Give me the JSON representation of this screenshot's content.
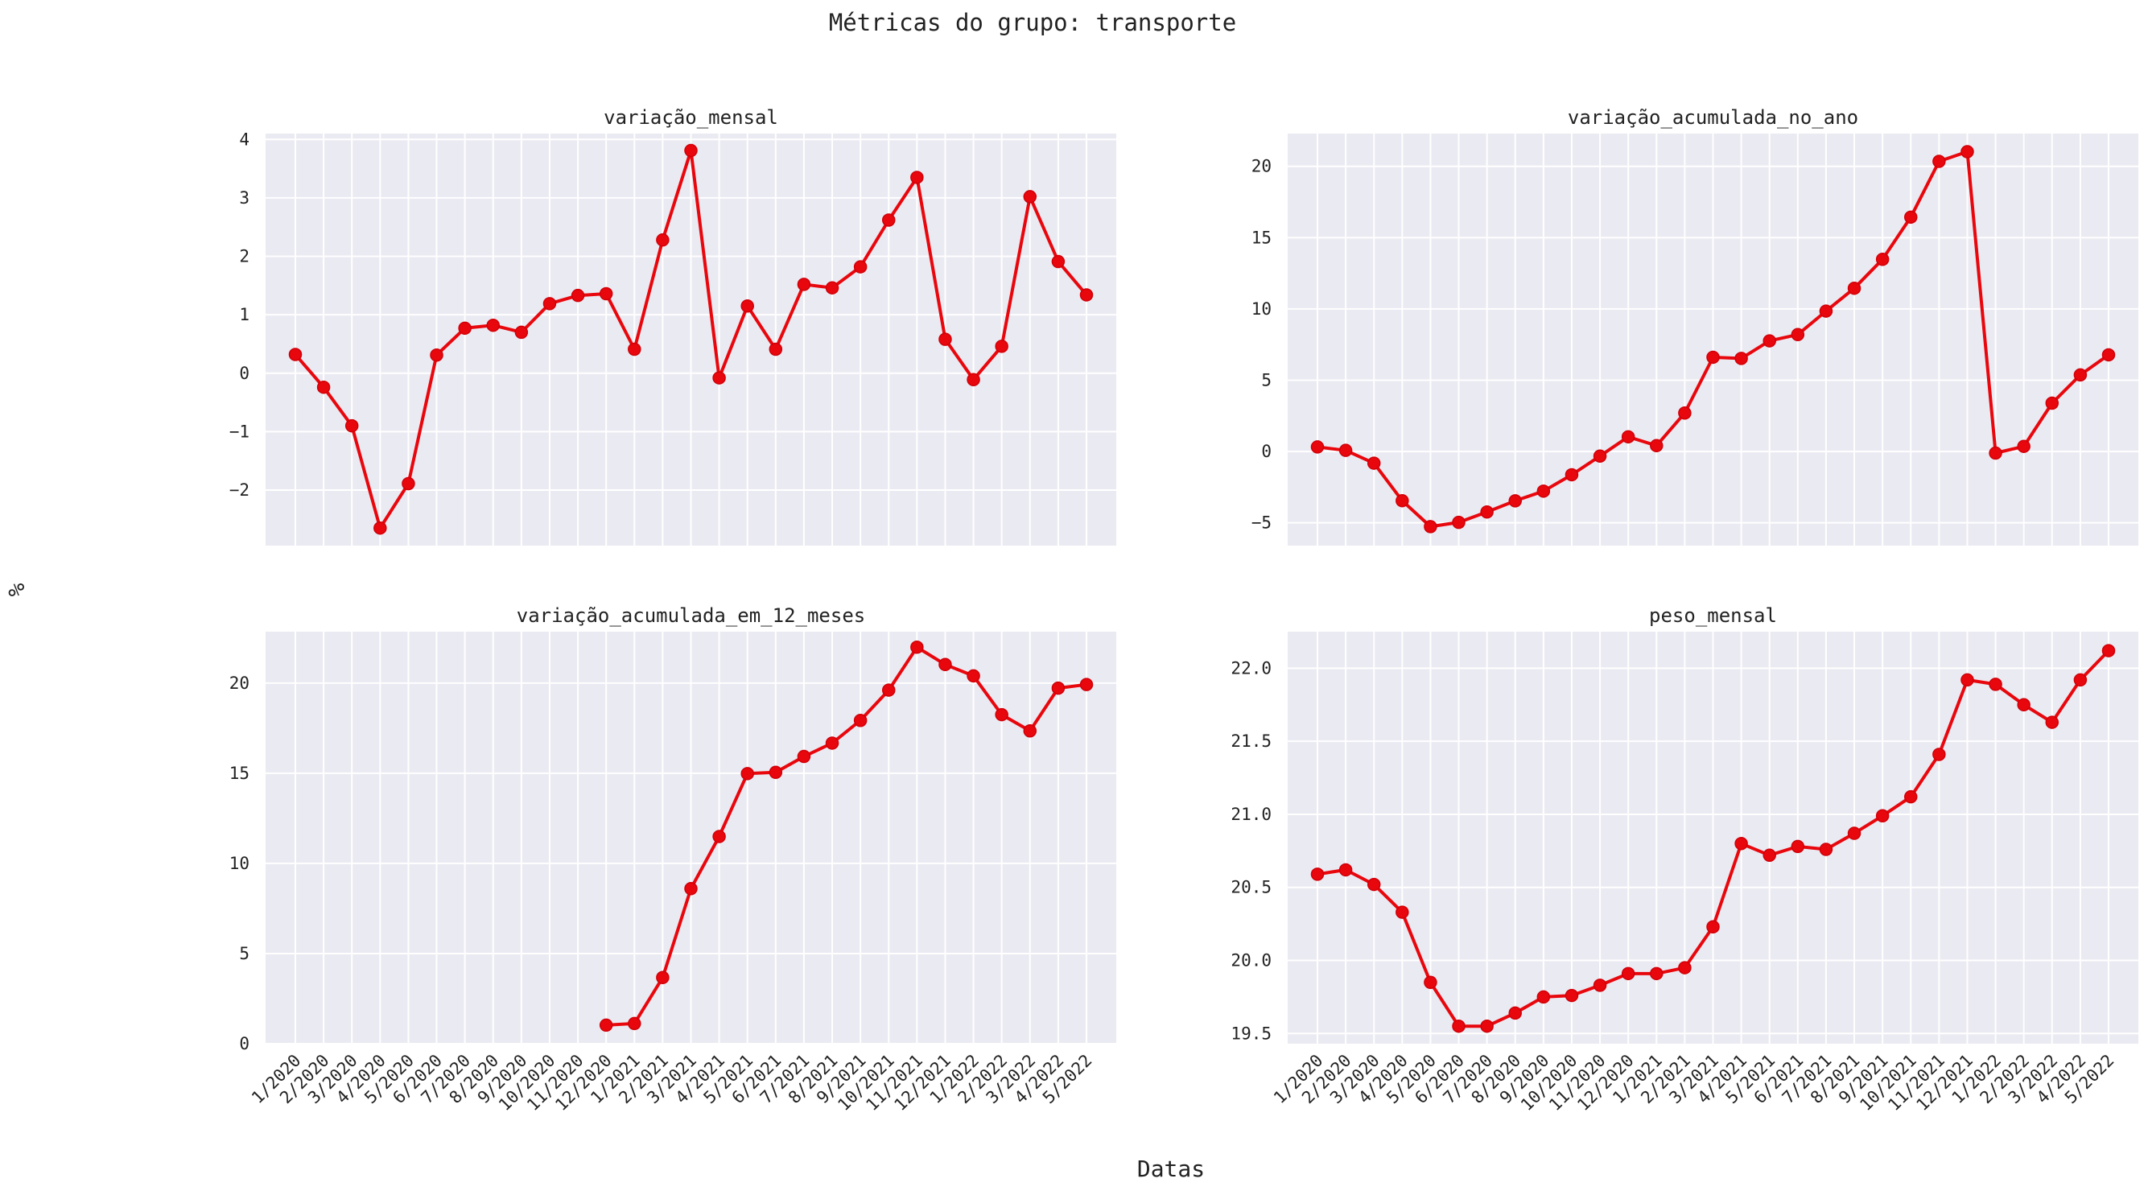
{
  "figure": {
    "title": "Métricas do grupo: transporte",
    "xlabel": "Datas",
    "ylabel": "%"
  },
  "style": {
    "line_color": "#e8070d",
    "background": "#eaeaf2",
    "grid_color": "#ffffff"
  },
  "chart_data": [
    {
      "type": "line",
      "title": "variação_mensal",
      "categories": [
        "1/2020",
        "2/2020",
        "3/2020",
        "4/2020",
        "5/2020",
        "6/2020",
        "7/2020",
        "8/2020",
        "9/2020",
        "10/2020",
        "11/2020",
        "12/2020",
        "1/2021",
        "2/2021",
        "3/2021",
        "4/2021",
        "5/2021",
        "6/2021",
        "7/2021",
        "8/2021",
        "9/2021",
        "10/2021",
        "11/2021",
        "12/2021",
        "1/2022",
        "2/2022",
        "3/2022",
        "4/2022",
        "5/2022"
      ],
      "values": [
        0.32,
        -0.24,
        -0.9,
        -2.65,
        -1.89,
        0.31,
        0.77,
        0.82,
        0.7,
        1.19,
        1.33,
        1.36,
        0.41,
        2.28,
        3.81,
        -0.08,
        1.15,
        0.41,
        1.52,
        1.46,
        1.82,
        2.62,
        3.35,
        0.58,
        -0.11,
        0.46,
        3.02,
        1.91,
        1.34
      ],
      "yticks": [
        -2,
        -1,
        0,
        1,
        2,
        3,
        4
      ],
      "ytick_labels": [
        "−2",
        "−1",
        "0",
        "1",
        "2",
        "3",
        "4"
      ],
      "ylim": [
        -2.95,
        4.1
      ],
      "show_xticklabels": false,
      "grid": true
    },
    {
      "type": "line",
      "title": "variação_acumulada_no_ano",
      "categories": [
        "1/2020",
        "2/2020",
        "3/2020",
        "4/2020",
        "5/2020",
        "6/2020",
        "7/2020",
        "8/2020",
        "9/2020",
        "10/2020",
        "11/2020",
        "12/2020",
        "1/2021",
        "2/2021",
        "3/2021",
        "4/2021",
        "5/2021",
        "6/2021",
        "7/2021",
        "8/2021",
        "9/2021",
        "10/2021",
        "11/2021",
        "12/2021",
        "1/2022",
        "2/2022",
        "3/2022",
        "4/2022",
        "5/2022"
      ],
      "values": [
        0.32,
        0.08,
        -0.82,
        -3.45,
        -5.27,
        -4.97,
        -4.24,
        -3.46,
        -2.78,
        -1.63,
        -0.32,
        1.03,
        0.41,
        2.7,
        6.61,
        6.53,
        7.76,
        8.2,
        9.85,
        11.45,
        13.48,
        16.44,
        20.35,
        21.03,
        -0.11,
        0.36,
        3.39,
        5.37,
        6.78
      ],
      "yticks": [
        -5,
        0,
        5,
        10,
        15,
        20
      ],
      "ytick_labels": [
        "−5",
        "0",
        "5",
        "10",
        "15",
        "20"
      ],
      "ylim": [
        -6.6,
        22.3
      ],
      "show_xticklabels": false,
      "grid": true
    },
    {
      "type": "line",
      "title": "variação_acumulada_em_12_meses",
      "categories": [
        "1/2020",
        "2/2020",
        "3/2020",
        "4/2020",
        "5/2020",
        "6/2020",
        "7/2020",
        "8/2020",
        "9/2020",
        "10/2020",
        "11/2020",
        "12/2020",
        "1/2021",
        "2/2021",
        "3/2021",
        "4/2021",
        "5/2021",
        "6/2021",
        "7/2021",
        "8/2021",
        "9/2021",
        "10/2021",
        "11/2021",
        "12/2021",
        "1/2022",
        "2/2022",
        "3/2022",
        "4/2022",
        "5/2022"
      ],
      "values": [
        null,
        null,
        null,
        null,
        null,
        null,
        null,
        null,
        null,
        null,
        null,
        1.03,
        1.12,
        3.67,
        8.6,
        11.49,
        14.98,
        15.05,
        15.93,
        16.67,
        17.93,
        19.61,
        21.99,
        21.03,
        20.4,
        18.25,
        17.35,
        19.72,
        19.92
      ],
      "yticks": [
        0,
        5,
        10,
        15,
        20
      ],
      "ytick_labels": [
        "0",
        "5",
        "10",
        "15",
        "20"
      ],
      "ylim": [
        0,
        22.85
      ],
      "show_xticklabels": true,
      "grid": true
    },
    {
      "type": "line",
      "title": "peso_mensal",
      "categories": [
        "1/2020",
        "2/2020",
        "3/2020",
        "4/2020",
        "5/2020",
        "6/2020",
        "7/2020",
        "8/2020",
        "9/2020",
        "10/2020",
        "11/2020",
        "12/2020",
        "1/2021",
        "2/2021",
        "3/2021",
        "4/2021",
        "5/2021",
        "6/2021",
        "7/2021",
        "8/2021",
        "9/2021",
        "10/2021",
        "11/2021",
        "12/2021",
        "1/2022",
        "2/2022",
        "3/2022",
        "4/2022",
        "5/2022"
      ],
      "values": [
        20.59,
        20.62,
        20.52,
        20.33,
        19.85,
        19.55,
        19.55,
        19.64,
        19.75,
        19.76,
        19.83,
        19.91,
        19.91,
        19.95,
        20.23,
        20.8,
        20.72,
        20.78,
        20.76,
        20.87,
        20.99,
        21.12,
        21.41,
        21.92,
        21.89,
        21.75,
        21.63,
        21.92,
        22.12
      ],
      "yticks": [
        19.5,
        20.0,
        20.5,
        21.0,
        21.5,
        22.0
      ],
      "ytick_labels": [
        "19.5",
        "20.0",
        "20.5",
        "21.0",
        "21.5",
        "22.0"
      ],
      "ylim": [
        19.43,
        22.25
      ],
      "show_xticklabels": true,
      "grid": true
    }
  ]
}
